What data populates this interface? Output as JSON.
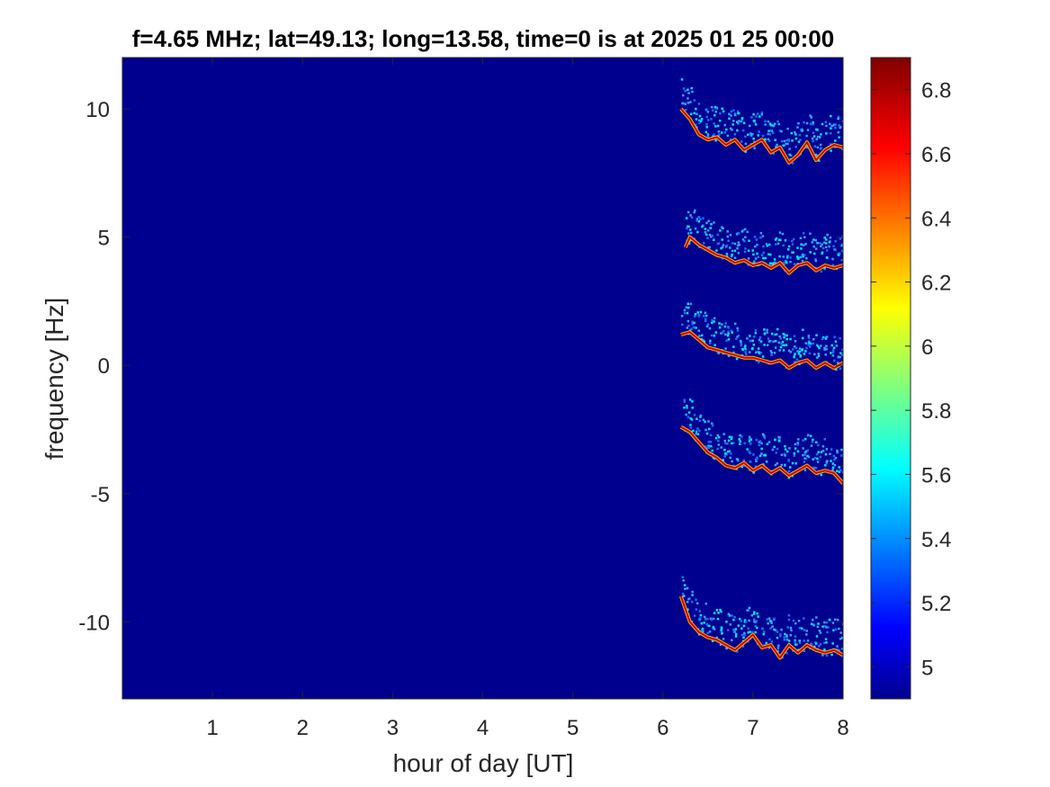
{
  "chart_data": {
    "type": "heatmap",
    "title": "f=4.65 MHz;  lat=49.13; long=13.58, time=0 is at 2025 01 25 00:00",
    "xlabel": "hour of day [UT]",
    "ylabel": "frequency [Hz]",
    "xlim": [
      0,
      8
    ],
    "ylim": [
      -13.0,
      12.0
    ],
    "x_ticks": [
      1,
      2,
      3,
      4,
      5,
      6,
      7,
      8
    ],
    "y_ticks": [
      -10,
      -5,
      0,
      5,
      10
    ],
    "x_tick_labels": [
      "1",
      "2",
      "3",
      "4",
      "5",
      "6",
      "7",
      "8"
    ],
    "y_tick_labels": [
      "-10",
      "-5",
      "0",
      "5",
      "10"
    ],
    "colorbar": {
      "colormap": "jet",
      "clim": [
        4.9,
        6.9
      ],
      "ticks": [
        5,
        5.2,
        5.4,
        5.6,
        5.8,
        6,
        6.2,
        6.4,
        6.6,
        6.8
      ],
      "tick_labels": [
        "5",
        "5.2",
        "5.4",
        "5.6",
        "5.8",
        "6",
        "6.2",
        "6.4",
        "6.6",
        "6.8"
      ]
    },
    "background_value": 4.9,
    "traces": [
      {
        "start_hour": 6.2,
        "points": [
          [
            6.2,
            10.0
          ],
          [
            6.3,
            9.6
          ],
          [
            6.4,
            9.0
          ],
          [
            6.5,
            8.8
          ],
          [
            6.6,
            8.9
          ],
          [
            6.7,
            8.6
          ],
          [
            6.8,
            8.8
          ],
          [
            6.9,
            8.4
          ],
          [
            7.0,
            8.6
          ],
          [
            7.1,
            8.8
          ],
          [
            7.2,
            8.3
          ],
          [
            7.3,
            8.5
          ],
          [
            7.4,
            7.9
          ],
          [
            7.5,
            8.2
          ],
          [
            7.6,
            8.7
          ],
          [
            7.7,
            8.0
          ],
          [
            7.8,
            8.4
          ],
          [
            7.9,
            8.6
          ],
          [
            8.0,
            8.5
          ]
        ]
      },
      {
        "start_hour": 6.25,
        "points": [
          [
            6.25,
            4.6
          ],
          [
            6.3,
            5.0
          ],
          [
            6.4,
            4.7
          ],
          [
            6.5,
            4.5
          ],
          [
            6.6,
            4.3
          ],
          [
            6.7,
            4.2
          ],
          [
            6.8,
            4.0
          ],
          [
            6.9,
            4.1
          ],
          [
            7.0,
            3.9
          ],
          [
            7.1,
            4.0
          ],
          [
            7.2,
            3.8
          ],
          [
            7.3,
            4.0
          ],
          [
            7.4,
            3.6
          ],
          [
            7.5,
            3.9
          ],
          [
            7.6,
            4.0
          ],
          [
            7.7,
            3.7
          ],
          [
            7.8,
            3.9
          ],
          [
            7.9,
            3.8
          ],
          [
            8.0,
            3.9
          ]
        ]
      },
      {
        "start_hour": 6.2,
        "points": [
          [
            6.2,
            1.2
          ],
          [
            6.3,
            1.3
          ],
          [
            6.4,
            1.0
          ],
          [
            6.5,
            0.7
          ],
          [
            6.6,
            0.6
          ],
          [
            6.7,
            0.5
          ],
          [
            6.8,
            0.4
          ],
          [
            6.9,
            0.3
          ],
          [
            7.0,
            0.3
          ],
          [
            7.1,
            0.2
          ],
          [
            7.2,
            0.1
          ],
          [
            7.3,
            0.2
          ],
          [
            7.4,
            -0.1
          ],
          [
            7.5,
            0.1
          ],
          [
            7.6,
            0.2
          ],
          [
            7.7,
            -0.1
          ],
          [
            7.8,
            0.1
          ],
          [
            7.9,
            -0.1
          ],
          [
            8.0,
            0.1
          ]
        ]
      },
      {
        "start_hour": 6.2,
        "points": [
          [
            6.2,
            -2.4
          ],
          [
            6.3,
            -2.6
          ],
          [
            6.4,
            -3.0
          ],
          [
            6.5,
            -3.4
          ],
          [
            6.6,
            -3.6
          ],
          [
            6.7,
            -3.9
          ],
          [
            6.8,
            -4.0
          ],
          [
            6.9,
            -3.8
          ],
          [
            7.0,
            -4.1
          ],
          [
            7.1,
            -3.9
          ],
          [
            7.2,
            -4.2
          ],
          [
            7.3,
            -4.0
          ],
          [
            7.4,
            -4.3
          ],
          [
            7.5,
            -4.1
          ],
          [
            7.6,
            -3.9
          ],
          [
            7.7,
            -4.2
          ],
          [
            7.8,
            -4.1
          ],
          [
            7.9,
            -4.2
          ],
          [
            8.0,
            -4.6
          ]
        ]
      },
      {
        "start_hour": 6.2,
        "points": [
          [
            6.2,
            -9.0
          ],
          [
            6.3,
            -10.0
          ],
          [
            6.4,
            -10.4
          ],
          [
            6.5,
            -10.6
          ],
          [
            6.6,
            -10.7
          ],
          [
            6.7,
            -10.9
          ],
          [
            6.8,
            -11.1
          ],
          [
            6.9,
            -10.8
          ],
          [
            7.0,
            -10.5
          ],
          [
            7.1,
            -11.0
          ],
          [
            7.2,
            -10.9
          ],
          [
            7.3,
            -11.4
          ],
          [
            7.4,
            -10.9
          ],
          [
            7.5,
            -11.2
          ],
          [
            7.6,
            -10.9
          ],
          [
            7.7,
            -11.1
          ],
          [
            7.8,
            -11.2
          ],
          [
            7.9,
            -11.1
          ],
          [
            8.0,
            -11.3
          ]
        ]
      }
    ]
  }
}
